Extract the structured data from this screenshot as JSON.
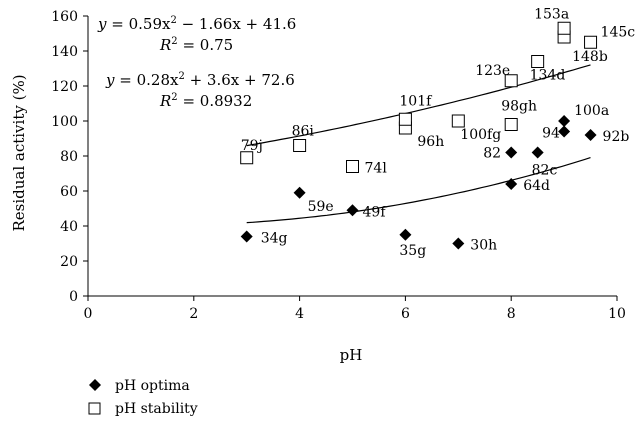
{
  "chart_data": {
    "type": "scatter",
    "xlabel": "pH",
    "ylabel": "Residual activity (%)",
    "xlim": [
      0,
      10
    ],
    "ylim": [
      0,
      160
    ],
    "x_ticks": [
      "0",
      "2",
      "4",
      "6",
      "8",
      "10"
    ],
    "y_ticks": [
      "0",
      "20",
      "40",
      "60",
      "80",
      "100",
      "120",
      "140",
      "160"
    ],
    "grid": false,
    "legend_placement": "bottom-left",
    "series": [
      {
        "name": "pH optima",
        "marker": "diamond",
        "color": "#000000",
        "points": [
          {
            "x": 3,
            "y": 34,
            "label": "34g"
          },
          {
            "x": 4,
            "y": 59,
            "label": "59e"
          },
          {
            "x": 5,
            "y": 49,
            "label": "49f"
          },
          {
            "x": 6,
            "y": 35,
            "label": "35g"
          },
          {
            "x": 7,
            "y": 30,
            "label": "30h"
          },
          {
            "x": 8,
            "y": 64,
            "label": "64d"
          },
          {
            "x": 8,
            "y": 82,
            "label": "82"
          },
          {
            "x": 8.5,
            "y": 82,
            "label": "82c"
          },
          {
            "x": 9,
            "y": 94,
            "label": "94"
          },
          {
            "x": 9,
            "y": 100,
            "label": "100a"
          },
          {
            "x": 9.5,
            "y": 92,
            "label": "92b"
          }
        ],
        "trendline": {
          "a": 0.59,
          "b": -1.66,
          "c": 41.6,
          "x_range": [
            3,
            9.5
          ]
        }
      },
      {
        "name": "pH stability",
        "marker": "square-open",
        "color": "#000000",
        "points": [
          {
            "x": 3,
            "y": 79,
            "label": "79j"
          },
          {
            "x": 4,
            "y": 86,
            "label": "86i"
          },
          {
            "x": 5,
            "y": 74,
            "label": "74l"
          },
          {
            "x": 6,
            "y": 96,
            "label": "96h"
          },
          {
            "x": 6,
            "y": 101,
            "label": "101f"
          },
          {
            "x": 7,
            "y": 100,
            "label": "100fg"
          },
          {
            "x": 8,
            "y": 98,
            "label": "98gh"
          },
          {
            "x": 8,
            "y": 123,
            "label": "123e"
          },
          {
            "x": 8.5,
            "y": 134,
            "label": "134d"
          },
          {
            "x": 9,
            "y": 148,
            "label": "148b"
          },
          {
            "x": 9,
            "y": 153,
            "label": "153a"
          },
          {
            "x": 9.5,
            "y": 145,
            "label": "145c"
          }
        ],
        "trendline": {
          "a": 0.28,
          "b": 3.6,
          "c": 72.6,
          "x_range": [
            3,
            9.5
          ]
        }
      }
    ],
    "annotations": {
      "eq1_prefix": "y",
      "eq1_body": " = 0.59x",
      "eq1_sup": "2",
      "eq1_rest": " − 1.66x + 41.6",
      "r1": "R",
      "r1_sup": "2",
      "r1_val": " = 0.75",
      "eq2_prefix": "y",
      "eq2_body": " = 0.28x",
      "eq2_sup": "2",
      "eq2_rest": " + 3.6x + 72.6",
      "r2": "R",
      "r2_sup": "2",
      "r2_val": " = 0.8932"
    }
  }
}
